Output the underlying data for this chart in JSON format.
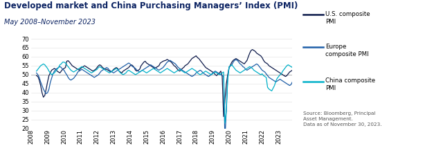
{
  "title": "Developed market and China Purchasing Managers’ Index (PMI)",
  "subtitle": "May 2008–November 2023",
  "source_text": "Source: Bloomberg, Principal\nAsset Management.\nData as of November 30, 2023.",
  "ylim": [
    20,
    70
  ],
  "yticks": [
    20,
    25,
    30,
    35,
    40,
    45,
    50,
    55,
    60,
    65,
    70
  ],
  "reference_line": 50,
  "title_color": "#0d2463",
  "subtitle_color": "#0d2463",
  "colors": {
    "us": "#0d1a4a",
    "europe": "#1e5fa8",
    "china": "#00b0c8"
  },
  "legend": [
    {
      "label": "U.S. composite\nPMI",
      "color": "#0d1a4a"
    },
    {
      "label": "Europe\ncomposite PMI",
      "color": "#1e5fa8"
    },
    {
      "label": "China composite\nPMI",
      "color": "#00b0c8"
    }
  ],
  "us_pmi": [
    49.5,
    49.0,
    47.0,
    44.0,
    40.0,
    37.5,
    38.5,
    42.0,
    46.0,
    49.5,
    51.0,
    52.5,
    53.0,
    53.5,
    53.0,
    52.0,
    51.5,
    51.0,
    52.0,
    53.0,
    53.5,
    54.0,
    57.5,
    57.8,
    57.0,
    56.0,
    55.0,
    54.5,
    54.0,
    53.5,
    53.0,
    52.5,
    53.5,
    54.0,
    54.5,
    55.0,
    54.5,
    54.0,
    53.5,
    53.0,
    52.5,
    52.0,
    52.5,
    53.0,
    54.0,
    55.0,
    55.5,
    55.0,
    54.0,
    53.5,
    53.0,
    53.0,
    52.5,
    52.0,
    51.5,
    52.0,
    53.0,
    53.5,
    54.0,
    53.5,
    52.0,
    51.5,
    51.0,
    52.0,
    52.5,
    53.0,
    53.5,
    54.0,
    55.0,
    55.5,
    55.0,
    54.0,
    52.5,
    52.0,
    52.5,
    53.0,
    55.0,
    56.0,
    57.0,
    57.5,
    56.5,
    56.0,
    55.5,
    55.0,
    54.5,
    54.0,
    53.5,
    54.0,
    54.5,
    55.0,
    56.5,
    57.0,
    57.5,
    57.8,
    58.0,
    58.5,
    58.0,
    57.5,
    57.0,
    56.0,
    55.0,
    54.5,
    53.5,
    52.5,
    52.0,
    52.5,
    53.5,
    54.0,
    55.0,
    55.5,
    56.0,
    57.0,
    58.0,
    59.0,
    59.5,
    60.0,
    60.5,
    59.5,
    59.0,
    58.0,
    57.0,
    56.0,
    55.0,
    54.0,
    53.5,
    53.0,
    52.5,
    52.0,
    51.5,
    51.0,
    50.0,
    49.5,
    50.5,
    51.0,
    52.0,
    49.0,
    26.7,
    36.0,
    45.0,
    50.0,
    54.0,
    55.5,
    57.0,
    58.0,
    58.5,
    59.0,
    58.5,
    58.0,
    57.5,
    57.0,
    56.5,
    56.0,
    57.0,
    58.0,
    60.0,
    62.0,
    63.5,
    64.0,
    63.5,
    63.0,
    62.0,
    61.5,
    61.0,
    60.5,
    59.5,
    58.0,
    57.0,
    56.5,
    56.0,
    55.0,
    54.5,
    54.0,
    53.5,
    53.0,
    52.5,
    52.0,
    51.5,
    51.0,
    50.5,
    50.0,
    49.5,
    49.0,
    49.5,
    50.5,
    51.5,
    52.0,
    52.5,
    53.0,
    53.5,
    54.0,
    54.5,
    55.0,
    54.5,
    54.0,
    53.5,
    53.0,
    52.5,
    52.0,
    51.5,
    51.0,
    50.5,
    50.0,
    50.5,
    50.8
  ],
  "europe_pmi": [
    51.0,
    50.0,
    48.5,
    46.0,
    44.0,
    42.0,
    40.5,
    39.5,
    40.0,
    42.0,
    45.5,
    48.0,
    50.5,
    52.0,
    53.0,
    53.5,
    54.0,
    54.5,
    54.0,
    53.0,
    52.5,
    51.0,
    50.0,
    48.5,
    47.5,
    47.0,
    47.5,
    48.0,
    49.0,
    50.0,
    51.5,
    52.0,
    52.5,
    53.0,
    52.5,
    52.0,
    51.5,
    51.0,
    50.5,
    50.0,
    49.5,
    49.0,
    48.5,
    49.0,
    49.5,
    50.0,
    51.0,
    52.0,
    52.5,
    53.0,
    53.5,
    54.0,
    53.5,
    52.5,
    52.0,
    51.5,
    51.0,
    51.5,
    52.0,
    52.5,
    53.0,
    53.5,
    54.0,
    54.5,
    55.0,
    55.5,
    56.0,
    56.5,
    56.0,
    55.0,
    54.5,
    54.0,
    53.5,
    52.5,
    52.0,
    51.5,
    52.0,
    52.5,
    53.0,
    53.5,
    54.0,
    54.5,
    55.0,
    55.5,
    55.0,
    54.5,
    54.0,
    53.5,
    53.0,
    52.5,
    53.0,
    53.5,
    54.0,
    55.0,
    56.0,
    57.0,
    57.5,
    58.0,
    57.5,
    57.0,
    56.5,
    56.0,
    55.0,
    54.0,
    53.5,
    53.0,
    52.5,
    52.0,
    51.5,
    51.0,
    50.5,
    50.0,
    49.5,
    49.0,
    49.5,
    50.0,
    51.0,
    51.5,
    52.0,
    52.5,
    52.0,
    51.0,
    50.5,
    50.0,
    49.5,
    49.0,
    49.5,
    50.0,
    51.0,
    51.5,
    52.0,
    51.5,
    51.0,
    50.5,
    50.0,
    49.5,
    49.0,
    13.6,
    31.0,
    48.5,
    54.0,
    54.9,
    55.5,
    57.0,
    58.0,
    58.3,
    58.0,
    57.0,
    56.0,
    55.5,
    54.5,
    54.0,
    53.0,
    52.5,
    53.0,
    53.5,
    54.0,
    54.5,
    55.0,
    55.5,
    56.0,
    55.5,
    54.5,
    53.5,
    52.5,
    52.0,
    51.5,
    50.5,
    49.5,
    48.5,
    48.0,
    47.5,
    47.0,
    46.5,
    46.0,
    46.5,
    47.0,
    47.5,
    47.0,
    46.5,
    46.0,
    45.5,
    45.0,
    44.5,
    44.0,
    44.5,
    46.0,
    47.5,
    48.5,
    49.0,
    49.5,
    50.0,
    50.5,
    50.0,
    49.5,
    48.5,
    48.0,
    47.5,
    47.0,
    47.5,
    47.8,
    47.0,
    46.5,
    46.0,
    47.2
  ],
  "china_pmi": [
    52.0,
    53.0,
    54.0,
    55.0,
    55.5,
    56.0,
    55.5,
    54.5,
    53.5,
    52.0,
    51.0,
    50.0,
    50.5,
    51.0,
    52.0,
    53.0,
    54.0,
    55.5,
    56.0,
    57.0,
    57.0,
    56.5,
    55.5,
    54.5,
    53.5,
    52.5,
    52.0,
    51.5,
    52.0,
    52.5,
    53.0,
    53.5,
    54.0,
    54.5,
    54.0,
    53.5,
    53.0,
    52.5,
    52.0,
    51.5,
    51.0,
    51.5,
    52.0,
    52.5,
    53.0,
    54.0,
    54.5,
    54.0,
    53.5,
    53.0,
    52.5,
    52.0,
    51.5,
    51.0,
    51.5,
    52.0,
    52.5,
    53.0,
    53.5,
    53.0,
    52.0,
    51.0,
    50.5,
    50.0,
    50.5,
    51.0,
    52.0,
    52.5,
    52.0,
    51.5,
    51.0,
    50.5,
    50.0,
    50.5,
    51.0,
    51.5,
    52.0,
    52.5,
    52.0,
    51.5,
    51.0,
    51.5,
    52.0,
    52.5,
    53.0,
    53.5,
    53.0,
    52.5,
    52.0,
    51.5,
    51.0,
    51.5,
    52.0,
    52.5,
    53.0,
    53.5,
    53.0,
    52.5,
    52.0,
    51.5,
    51.0,
    51.5,
    52.0,
    52.5,
    53.0,
    52.5,
    52.0,
    51.5,
    51.0,
    51.5,
    52.0,
    52.5,
    53.0,
    53.5,
    53.0,
    52.5,
    52.0,
    51.0,
    50.5,
    50.0,
    50.5,
    51.0,
    51.5,
    52.0,
    51.5,
    51.0,
    50.5,
    50.0,
    50.5,
    51.0,
    51.5,
    51.0,
    50.5,
    50.0,
    50.5,
    51.0,
    51.5,
    23.0,
    30.0,
    47.0,
    54.5,
    55.0,
    55.5,
    54.5,
    53.5,
    52.5,
    52.0,
    51.5,
    51.0,
    51.5,
    52.0,
    52.5,
    53.0,
    53.5,
    54.0,
    54.5,
    54.0,
    53.5,
    52.5,
    52.0,
    51.5,
    51.0,
    50.5,
    50.0,
    50.5,
    49.5,
    49.0,
    48.5,
    43.0,
    42.0,
    41.5,
    41.0,
    42.5,
    44.0,
    46.5,
    48.0,
    49.0,
    50.0,
    50.5,
    52.0,
    53.0,
    54.0,
    55.0,
    55.5,
    55.0,
    54.5,
    54.0,
    53.5,
    53.0,
    52.5,
    52.0,
    51.5,
    51.0,
    50.5,
    50.0,
    49.5,
    49.0,
    49.5,
    50.0,
    50.5,
    51.0,
    51.5,
    51.0,
    50.5,
    49.5,
    49.0
  ]
}
